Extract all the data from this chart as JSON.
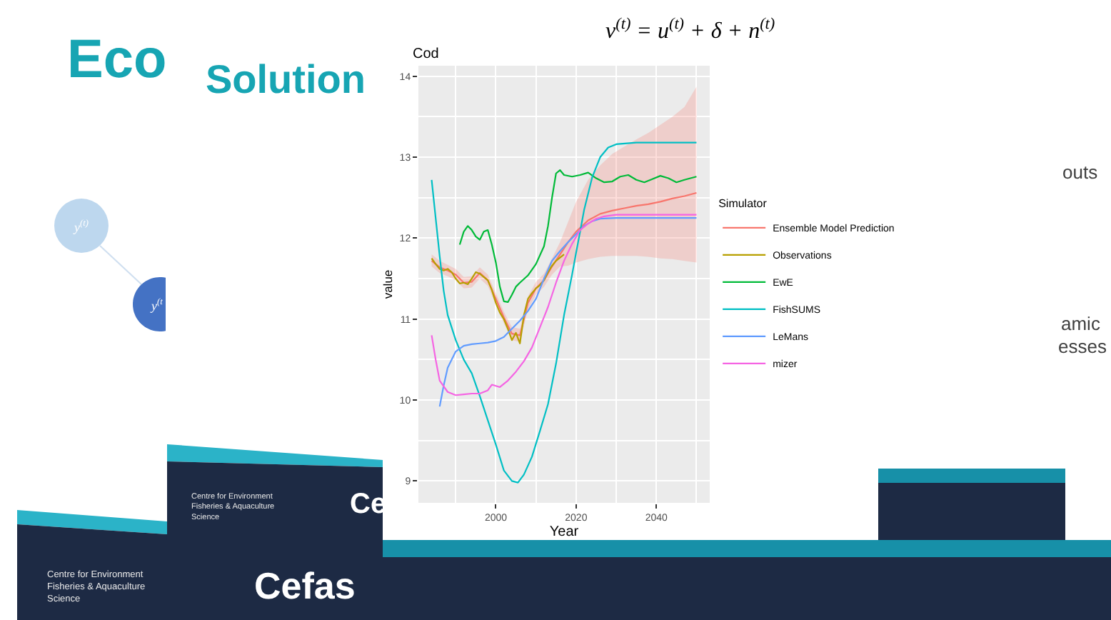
{
  "chart_data": {
    "type": "line",
    "title": "Cod",
    "xlabel": "Year",
    "ylabel": "value",
    "legend_title": "Simulator",
    "xlim": [
      1980.7,
      2053.3
    ],
    "ylim": [
      8.73,
      14.13
    ],
    "xticks": [
      2000,
      2020,
      2040
    ],
    "yticks": [
      9,
      10,
      11,
      12,
      13,
      14
    ],
    "grid": true,
    "legend": "right",
    "series": [
      {
        "name": "Ensemble Model Prediction",
        "color": "#f8766d",
        "x": [
          1984,
          1986,
          1988,
          1990,
          1992,
          1994,
          1996,
          1998,
          2000,
          2002,
          2004,
          2006,
          2008,
          2010,
          2012,
          2014,
          2016,
          2018,
          2020,
          2023,
          2026,
          2029,
          2032,
          2035,
          2038,
          2041,
          2044,
          2047,
          2050
        ],
        "values": [
          11.72,
          11.64,
          11.6,
          11.55,
          11.45,
          11.46,
          11.57,
          11.48,
          11.25,
          11.02,
          10.82,
          10.8,
          11.2,
          11.38,
          11.48,
          11.65,
          11.8,
          11.95,
          12.08,
          12.22,
          12.3,
          12.34,
          12.37,
          12.4,
          12.42,
          12.45,
          12.49,
          12.52,
          12.56
        ],
        "lower": [
          11.65,
          11.57,
          11.53,
          11.48,
          11.38,
          11.39,
          11.5,
          11.41,
          11.18,
          10.95,
          10.74,
          10.72,
          11.12,
          11.3,
          11.4,
          11.55,
          11.65,
          11.66,
          11.7,
          11.74,
          11.77,
          11.78,
          11.78,
          11.78,
          11.77,
          11.75,
          11.74,
          11.72,
          11.7
        ],
        "upper": [
          11.8,
          11.72,
          11.67,
          11.62,
          11.52,
          11.53,
          11.64,
          11.55,
          11.32,
          11.09,
          10.9,
          10.88,
          11.28,
          11.46,
          11.56,
          11.75,
          11.95,
          12.2,
          12.45,
          12.72,
          12.9,
          13.04,
          13.13,
          13.22,
          13.3,
          13.4,
          13.5,
          13.62,
          13.87
        ]
      },
      {
        "name": "Observations",
        "color": "#b79f00",
        "x": [
          1984,
          1985,
          1986,
          1987,
          1988,
          1989,
          1990,
          1991,
          1992,
          1993,
          1994,
          1995,
          1996,
          1997,
          1998,
          1999,
          2000,
          2001,
          2002,
          2003,
          2004,
          2005,
          2006,
          2007,
          2008,
          2009,
          2010,
          2011,
          2012,
          2013,
          2014,
          2015,
          2016,
          2017
        ],
        "values": [
          11.75,
          11.68,
          11.62,
          11.6,
          11.62,
          11.58,
          11.5,
          11.44,
          11.45,
          11.43,
          11.5,
          11.58,
          11.56,
          11.52,
          11.48,
          11.36,
          11.2,
          11.08,
          11.0,
          10.88,
          10.74,
          10.83,
          10.7,
          11.05,
          11.25,
          11.32,
          11.38,
          11.42,
          11.48,
          11.58,
          11.66,
          11.72,
          11.76,
          11.8
        ]
      },
      {
        "name": "EwE",
        "color": "#00ba38",
        "x": [
          1991,
          1992,
          1993,
          1994,
          1995,
          1996,
          1997,
          1998,
          1999,
          2000,
          2001,
          2002,
          2003,
          2004,
          2005,
          2006,
          2008,
          2010,
          2012,
          2013,
          2014,
          2015,
          2016,
          2017,
          2019,
          2021,
          2023,
          2025,
          2027,
          2029,
          2031,
          2033,
          2035,
          2037,
          2039,
          2041,
          2043,
          2045,
          2047,
          2050
        ],
        "values": [
          11.92,
          12.08,
          12.15,
          12.1,
          12.02,
          11.98,
          12.08,
          12.1,
          11.92,
          11.7,
          11.4,
          11.22,
          11.21,
          11.3,
          11.4,
          11.45,
          11.54,
          11.68,
          11.9,
          12.15,
          12.5,
          12.8,
          12.84,
          12.78,
          12.76,
          12.78,
          12.81,
          12.74,
          12.69,
          12.7,
          12.76,
          12.78,
          12.72,
          12.69,
          12.73,
          12.77,
          12.74,
          12.69,
          12.72,
          12.76
        ]
      },
      {
        "name": "FishSUMS",
        "color": "#00bfc4",
        "x": [
          1984,
          1985,
          1986,
          1987,
          1988,
          1990,
          1992,
          1994,
          1996,
          1998,
          2000,
          2002,
          2004,
          2005.5,
          2007,
          2009,
          2011,
          2013,
          2015,
          2016,
          2017,
          2018,
          2019,
          2020,
          2021,
          2022,
          2024,
          2026,
          2028,
          2030,
          2035,
          2040,
          2045,
          2050
        ],
        "values": [
          12.72,
          12.25,
          11.78,
          11.35,
          11.05,
          10.74,
          10.5,
          10.33,
          10.05,
          9.75,
          9.45,
          9.13,
          9.0,
          8.98,
          9.08,
          9.3,
          9.62,
          9.95,
          10.45,
          10.75,
          11.05,
          11.3,
          11.55,
          11.82,
          12.08,
          12.35,
          12.75,
          13.0,
          13.12,
          13.16,
          13.18,
          13.18,
          13.18,
          13.18
        ]
      },
      {
        "name": "LeMans",
        "color": "#619cff",
        "x": [
          1986,
          1987,
          1988,
          1990,
          1992,
          1994,
          1996,
          1998,
          2000,
          2002,
          2004,
          2006,
          2008,
          2010,
          2012,
          2014,
          2016,
          2018,
          2020,
          2022,
          2024,
          2026,
          2030,
          2035,
          2040,
          2045,
          2050
        ],
        "values": [
          9.92,
          10.18,
          10.4,
          10.6,
          10.67,
          10.69,
          10.7,
          10.71,
          10.73,
          10.78,
          10.88,
          10.98,
          11.1,
          11.25,
          11.5,
          11.72,
          11.84,
          11.95,
          12.05,
          12.15,
          12.21,
          12.24,
          12.25,
          12.25,
          12.25,
          12.25,
          12.25
        ]
      },
      {
        "name": "mizer",
        "color": "#f564e3",
        "x": [
          1984,
          1985,
          1986,
          1988,
          1990,
          1992,
          1994,
          1996,
          1998,
          1999,
          2001,
          2003,
          2005,
          2007,
          2009,
          2011,
          2013,
          2015,
          2017,
          2019,
          2021,
          2023,
          2025,
          2027,
          2030,
          2035,
          2040,
          2045,
          2050
        ],
        "values": [
          10.8,
          10.5,
          10.24,
          10.1,
          10.06,
          10.07,
          10.08,
          10.08,
          10.12,
          10.19,
          10.16,
          10.24,
          10.35,
          10.48,
          10.65,
          10.9,
          11.15,
          11.45,
          11.72,
          11.93,
          12.1,
          12.18,
          12.24,
          12.27,
          12.29,
          12.29,
          12.29,
          12.29,
          12.29
        ]
      }
    ],
    "annotations": [
      "Eco",
      "Solution",
      "v$^{(t)}$ = u$^{(t)}$ + δ + n$^{(t)}$",
      "outs",
      "amic",
      "esses",
      "y$^{(t)}$",
      "y$^{(t}$",
      "Centre for Environment\nFisheries & Aquaculture\nScience",
      "Ce",
      "Centre for Environment\nFisheries & Aquaculture\nScience",
      "Cefas"
    ]
  }
}
